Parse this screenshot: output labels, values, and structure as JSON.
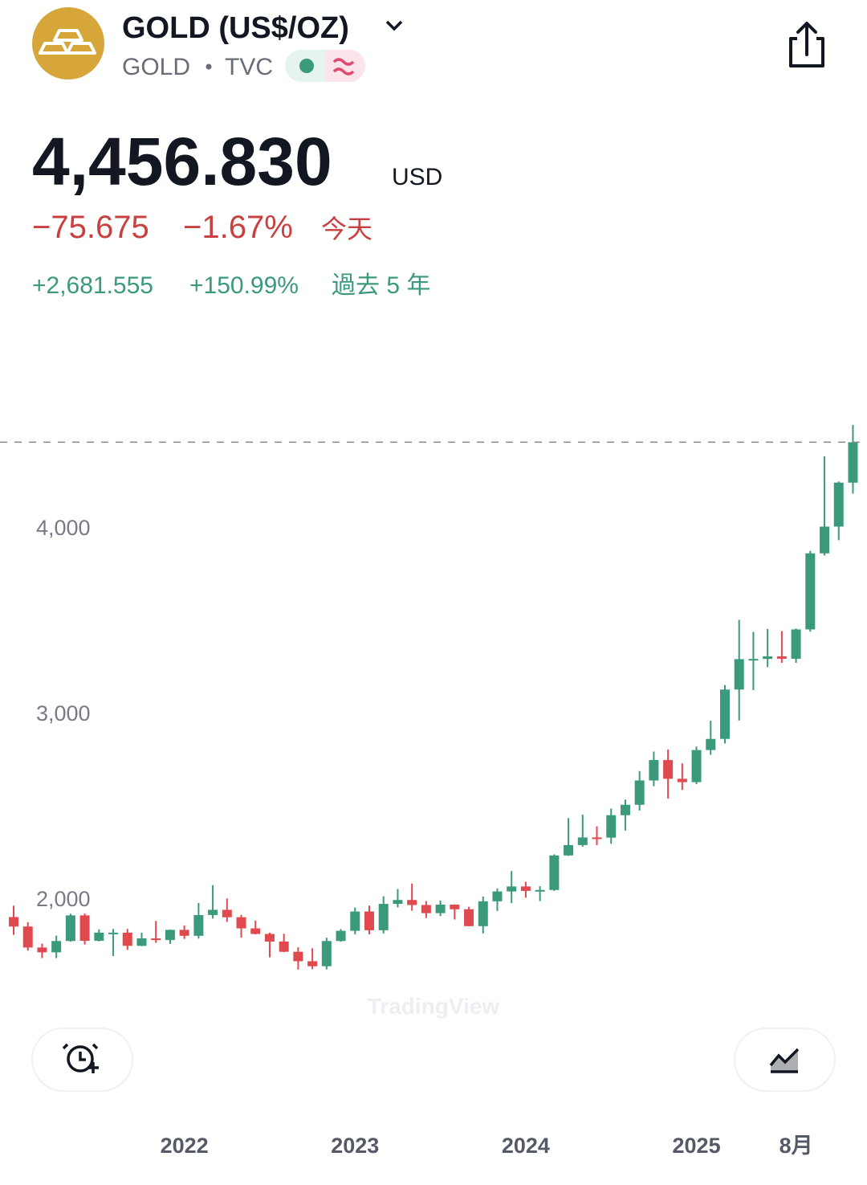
{
  "header": {
    "title": "GOLD (US$/OZ)",
    "symbol": "GOLD",
    "exchange": "TVC",
    "price": "4,456.830",
    "currency": "USD",
    "change": "−75.675",
    "change_percent": "−1.67%",
    "change_period": "今天",
    "long_change": "+2,681.555",
    "long_change_percent": "+150.99%",
    "long_change_period": "過去 5 年"
  },
  "chart_data": {
    "type": "candlestick",
    "categories": [
      null,
      null,
      null,
      null,
      null,
      null,
      null,
      null,
      null,
      null,
      null,
      null,
      "2022",
      null,
      null,
      null,
      null,
      null,
      null,
      null,
      null,
      null,
      null,
      null,
      "2023",
      null,
      null,
      null,
      null,
      null,
      null,
      null,
      null,
      null,
      null,
      null,
      "2024",
      null,
      null,
      null,
      null,
      null,
      null,
      null,
      null,
      null,
      null,
      null,
      "2025",
      null,
      null,
      null,
      null,
      null,
      null,
      "8月",
      null,
      null,
      null,
      null
    ],
    "open": [
      1898,
      1847,
      1734,
      1708,
      1769,
      1907,
      1770,
      1814,
      1814,
      1743,
      1783,
      1774,
      1829,
      1797,
      1909,
      1937,
      1897,
      1837,
      1807,
      1766,
      1711,
      1660,
      1633,
      1769,
      1824,
      1928,
      1827,
      1969,
      1990,
      1963,
      1919,
      1965,
      1940,
      1849,
      1983,
      2036,
      2063,
      2039,
      2044,
      2230,
      2286,
      2327,
      2326,
      2447,
      2503,
      2634,
      2744,
      2643,
      2625,
      2798,
      2858,
      3124,
      3288,
      3289,
      3303,
      3290,
      3448,
      3858,
      4002,
      4239
    ],
    "high": [
      1959,
      1871,
      1755,
      1798,
      1916,
      1917,
      1832,
      1834,
      1834,
      1814,
      1877,
      1830,
      1853,
      1974,
      2070,
      1998,
      1910,
      1879,
      1814,
      1808,
      1735,
      1730,
      1787,
      1833,
      1949,
      1960,
      2010,
      2049,
      2079,
      1984,
      1987,
      1966,
      1953,
      2009,
      2052,
      2146,
      2088,
      2065,
      2236,
      2431,
      2450,
      2387,
      2483,
      2531,
      2685,
      2790,
      2801,
      2726,
      2817,
      2956,
      3148,
      3500,
      3435,
      3451,
      3439,
      3453,
      3871,
      4381,
      4245,
      4550
    ],
    "low": [
      1802,
      1717,
      1677,
      1677,
      1765,
      1750,
      1767,
      1688,
      1721,
      1741,
      1759,
      1753,
      1780,
      1782,
      1890,
      1872,
      1787,
      1805,
      1681,
      1709,
      1615,
      1617,
      1616,
      1765,
      1805,
      1805,
      1810,
      1950,
      1932,
      1893,
      1903,
      1885,
      1848,
      1810,
      1931,
      1973,
      2002,
      1984,
      2039,
      2228,
      2277,
      2286,
      2293,
      2364,
      2472,
      2603,
      2536,
      2583,
      2614,
      2772,
      2833,
      2957,
      3121,
      3245,
      3268,
      3268,
      3436,
      3846,
      3929,
      4180
    ],
    "close": [
      1847,
      1734,
      1708,
      1769,
      1907,
      1770,
      1814,
      1814,
      1743,
      1783,
      1774,
      1829,
      1797,
      1909,
      1937,
      1897,
      1837,
      1807,
      1766,
      1711,
      1660,
      1633,
      1769,
      1824,
      1928,
      1827,
      1969,
      1990,
      1963,
      1919,
      1965,
      1940,
      1849,
      1983,
      2036,
      2063,
      2039,
      2044,
      2230,
      2286,
      2327,
      2326,
      2447,
      2503,
      2634,
      2744,
      2643,
      2625,
      2798,
      2858,
      3124,
      3288,
      3289,
      3303,
      3290,
      3448,
      3858,
      4002,
      4239,
      4456.83
    ],
    "up_color": "#3b9a7c",
    "down_color": "#e04a4f",
    "ylim": [
      1320,
      4805
    ],
    "yticks": [
      {
        "value": 2000,
        "label": "2,000"
      },
      {
        "value": 3000,
        "label": "3,000"
      },
      {
        "value": 4000,
        "label": "4,000"
      }
    ],
    "last_price_line": true,
    "watermark": "TradingView"
  }
}
